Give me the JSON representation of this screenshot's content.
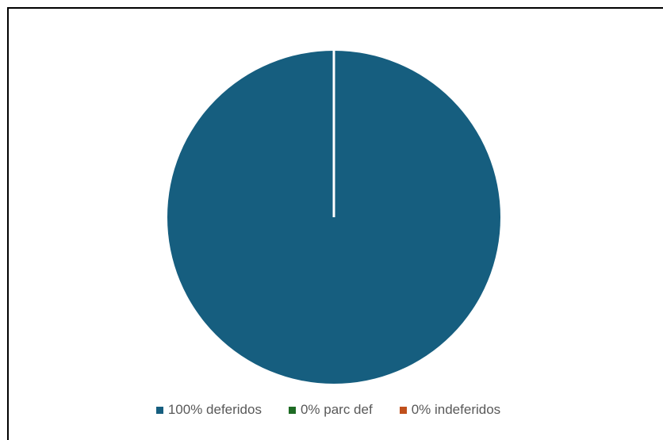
{
  "chart_data": {
    "type": "pie",
    "title": "",
    "categories": [
      "100% deferidos",
      "0% parc def",
      "0% indeferidos"
    ],
    "values": [
      100,
      0,
      0
    ],
    "colors": [
      "#165e7f",
      "#1e6b24",
      "#c0501c"
    ],
    "legend_position": "bottom",
    "slice_border_color": "#ffffff"
  }
}
